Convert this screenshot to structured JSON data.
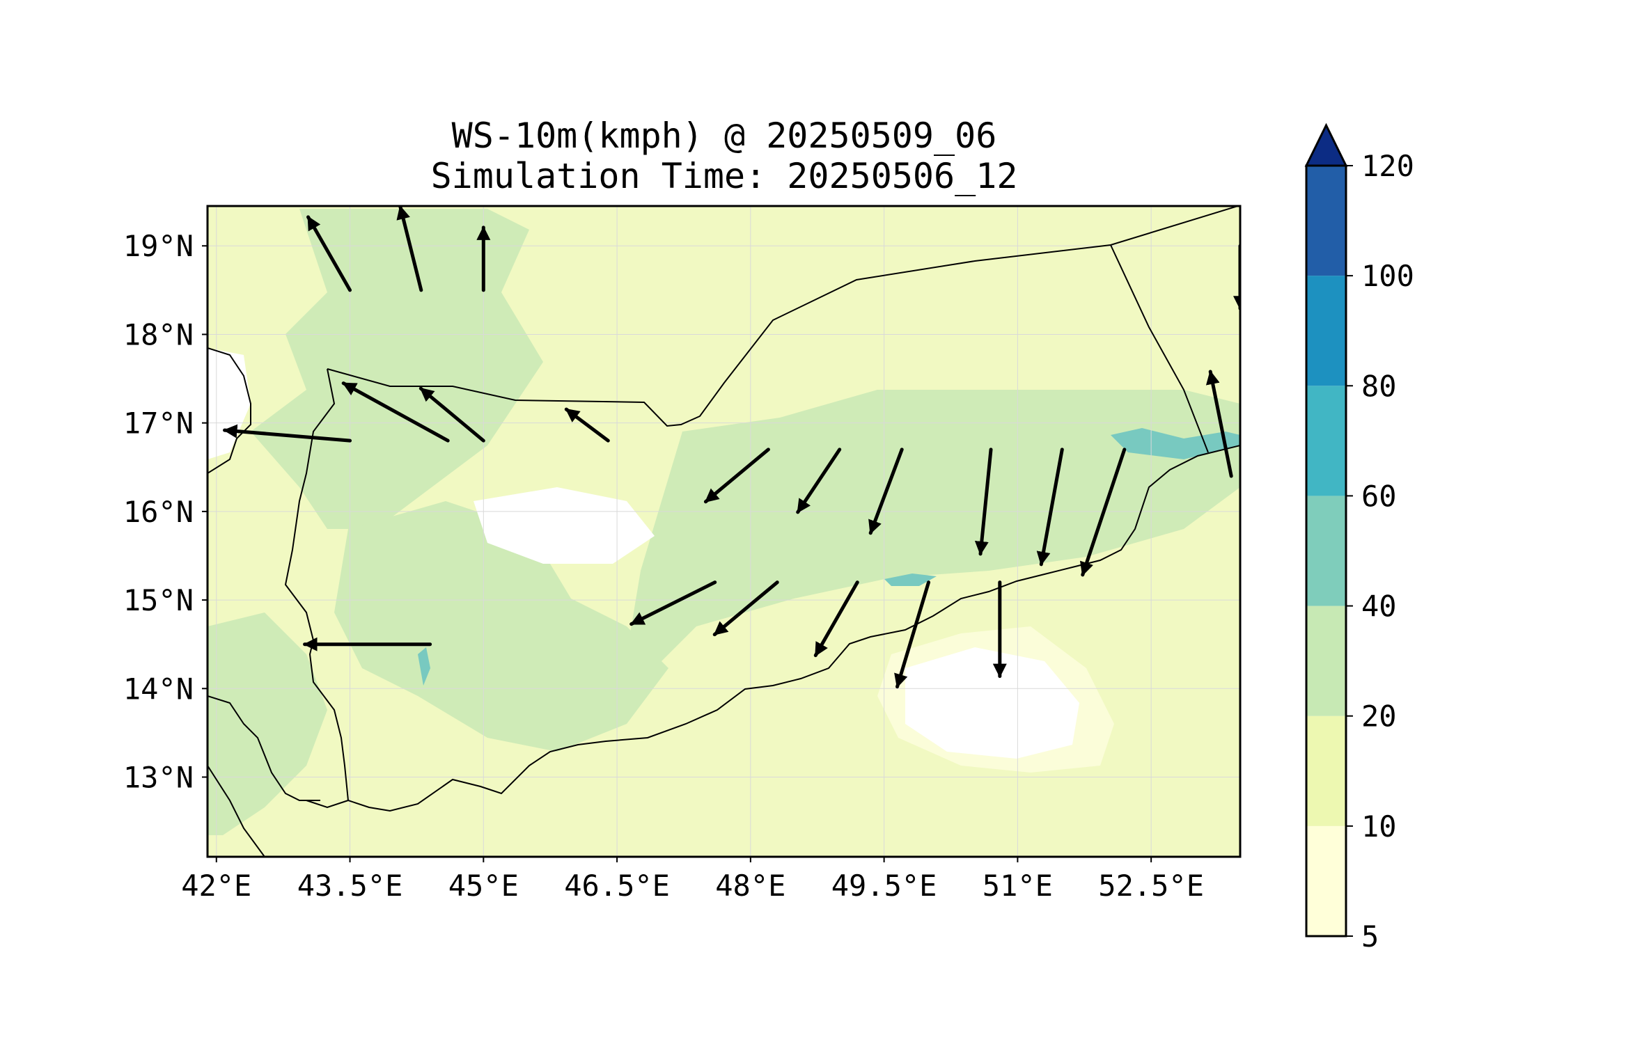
{
  "title": {
    "line1": "WS-10m(kmph) @ 20250509_06",
    "line2": "Simulation Time: 20250506_12"
  },
  "map": {
    "lon_range": [
      41.9,
      53.5
    ],
    "lat_range": [
      12.1,
      19.45
    ],
    "lon_ticks": [
      "42°E",
      "43.5°E",
      "45°E",
      "46.5°E",
      "48°E",
      "49.5°E",
      "51°E",
      "52.5°E"
    ],
    "lat_ticks": [
      "19°N",
      "18°N",
      "17°N",
      "16°N",
      "15°N",
      "14°N",
      "13°N"
    ],
    "background_color": "#f1f9c2",
    "grid": true
  },
  "colorbar": {
    "levels": [
      "5",
      "10",
      "20",
      "40",
      "60",
      "80",
      "100",
      "120"
    ],
    "colors": [
      "#ffffd9",
      "#edf8b1",
      "#c7e9b4",
      "#7fcdbb",
      "#41b6c4",
      "#1d91c0",
      "#225ea8",
      "#0c2c84"
    ],
    "extend": "max"
  },
  "chart_data": {
    "type": "heatmap",
    "variable": "WS-10m(kmph)",
    "valid_time": "20250509_06",
    "simulation_time": "20250506_12",
    "xlabel": "",
    "ylabel": "",
    "xlim": [
      41.9,
      53.5
    ],
    "ylim": [
      12.1,
      19.45
    ],
    "wind_vectors": [
      {
        "lon": 44.6,
        "lat": 16.8,
        "u": -1.0,
        "v": 0.55
      },
      {
        "lon": 43.5,
        "lat": 16.8,
        "u": -1.2,
        "v": 0.1
      },
      {
        "lon": 45.0,
        "lat": 16.8,
        "u": -0.6,
        "v": 0.5
      },
      {
        "lon": 46.4,
        "lat": 16.8,
        "u": -0.4,
        "v": 0.3
      },
      {
        "lon": 48.2,
        "lat": 16.7,
        "u": -0.6,
        "v": -0.5
      },
      {
        "lon": 49.0,
        "lat": 16.7,
        "u": -0.4,
        "v": -0.6
      },
      {
        "lon": 49.7,
        "lat": 16.7,
        "u": -0.3,
        "v": -0.8
      },
      {
        "lon": 50.7,
        "lat": 16.7,
        "u": -0.1,
        "v": -1.0
      },
      {
        "lon": 51.5,
        "lat": 16.7,
        "u": -0.2,
        "v": -1.1
      },
      {
        "lon": 52.2,
        "lat": 16.7,
        "u": -0.4,
        "v": -1.2
      },
      {
        "lon": 44.4,
        "lat": 14.5,
        "u": -1.2,
        "v": 0.0
      },
      {
        "lon": 47.6,
        "lat": 15.2,
        "u": -0.8,
        "v": -0.4
      },
      {
        "lon": 48.3,
        "lat": 15.2,
        "u": -0.6,
        "v": -0.5
      },
      {
        "lon": 49.2,
        "lat": 15.2,
        "u": -0.4,
        "v": -0.7
      },
      {
        "lon": 50.0,
        "lat": 15.2,
        "u": -0.3,
        "v": -1.0
      },
      {
        "lon": 50.8,
        "lat": 15.2,
        "u": 0.0,
        "v": -0.9
      },
      {
        "lon": 43.5,
        "lat": 18.5,
        "u": -0.4,
        "v": 0.7
      },
      {
        "lon": 44.3,
        "lat": 18.5,
        "u": -0.2,
        "v": 0.8
      },
      {
        "lon": 45.0,
        "lat": 18.5,
        "u": 0.0,
        "v": 0.6
      },
      {
        "lon": 53.4,
        "lat": 16.4,
        "u": -0.2,
        "v": 1.0
      },
      {
        "lon": 53.5,
        "lat": 19.0,
        "u": 0.0,
        "v": -0.6
      }
    ]
  }
}
